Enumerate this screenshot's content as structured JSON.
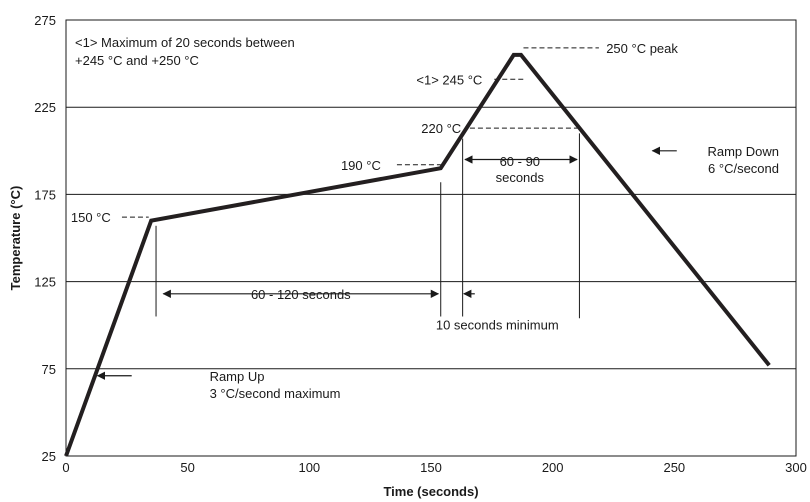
{
  "chart_data": {
    "type": "line",
    "title": "",
    "xlabel": "Time (seconds)",
    "ylabel": "Temperature (°C)",
    "xlim": [
      0,
      300
    ],
    "ylim": [
      25,
      275
    ],
    "x_ticks": [
      0,
      50,
      100,
      150,
      200,
      250,
      300
    ],
    "y_ticks": [
      25,
      75,
      125,
      175,
      225,
      275
    ],
    "grid": "horizontal",
    "legend": "none",
    "line_color": "#231f20",
    "series": [
      {
        "name": "",
        "x": [
          0,
          35,
          154,
          184,
          187,
          289
        ],
        "y": [
          25,
          160,
          190,
          255,
          255,
          77
        ]
      }
    ],
    "annotations": {
      "note_line1": "<1> Maximum of 20 seconds between",
      "note_line2": "+245 °C and +250 °C",
      "peak_label": "250 °C peak",
      "t245_label": "<1> 245 °C",
      "t220_label": "220 °C",
      "t190_label": "190 °C",
      "t150_label": "150 °C",
      "dwell_label_1": "60 - 90",
      "dwell_label_2": "seconds",
      "soak_label": "60 - 120 seconds",
      "min_label": "10 seconds minimum",
      "rampdown_label_1": "Ramp Down",
      "rampdown_label_2": "6 °C/second",
      "rampup_label_1": "Ramp Up",
      "rampup_label_2": "3 °C/second maximum"
    }
  }
}
